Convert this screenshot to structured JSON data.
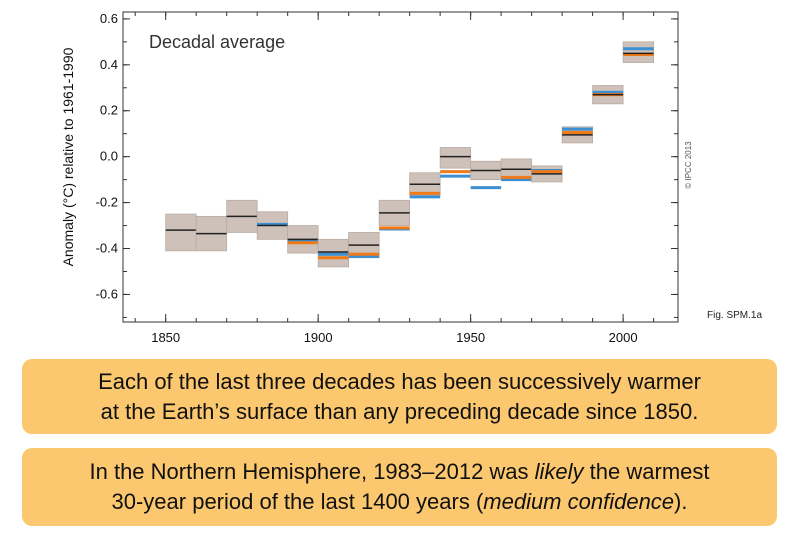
{
  "chart_data": {
    "type": "box",
    "title": "Decadal average",
    "ylabel": "Anomaly (°C) relative to 1961-1990",
    "xlabel": "",
    "xlim": [
      1836,
      2018
    ],
    "ylim": [
      -0.72,
      0.63
    ],
    "xticks": [
      1850,
      1900,
      1950,
      2000
    ],
    "xtick_labels": [
      "1850",
      "1900",
      "1950",
      "2000"
    ],
    "yticks": [
      0.6,
      0.4,
      0.2,
      0.0,
      -0.2,
      -0.4,
      -0.6
    ],
    "ytick_labels": [
      "0.6",
      "0.4",
      "0.2",
      "0.0",
      "-0.2",
      "-0.4",
      "-0.6"
    ],
    "grid": false,
    "legend": "none",
    "colors": {
      "uncertainty_box": "#cdc1b9",
      "box_edge": "#b8aba2",
      "central_estimate": "#222222",
      "orange_series": "#f07a18",
      "blue_series": "#3d8fd1",
      "axis": "#333333"
    },
    "decades": [
      {
        "start": 1850,
        "end": 1860,
        "low": -0.41,
        "high": -0.25,
        "black": -0.32,
        "orange": null,
        "blue": null
      },
      {
        "start": 1860,
        "end": 1870,
        "low": -0.41,
        "high": -0.26,
        "black": -0.335,
        "orange": null,
        "blue": null
      },
      {
        "start": 1870,
        "end": 1880,
        "low": -0.33,
        "high": -0.19,
        "black": -0.26,
        "orange": null,
        "blue": null
      },
      {
        "start": 1880,
        "end": 1890,
        "low": -0.36,
        "high": -0.24,
        "black": -0.3,
        "orange": null,
        "blue": -0.295
      },
      {
        "start": 1890,
        "end": 1900,
        "low": -0.42,
        "high": -0.3,
        "black": -0.36,
        "orange": -0.375,
        "blue": -0.365
      },
      {
        "start": 1900,
        "end": 1910,
        "low": -0.48,
        "high": -0.36,
        "black": -0.415,
        "orange": -0.44,
        "blue": -0.425
      },
      {
        "start": 1910,
        "end": 1920,
        "low": -0.44,
        "high": -0.33,
        "black": -0.385,
        "orange": -0.425,
        "blue": -0.435
      },
      {
        "start": 1920,
        "end": 1930,
        "low": -0.3,
        "high": -0.19,
        "black": -0.245,
        "orange": -0.31,
        "blue": -0.315
      },
      {
        "start": 1930,
        "end": 1940,
        "low": -0.17,
        "high": -0.07,
        "black": -0.12,
        "orange": -0.16,
        "blue": -0.175
      },
      {
        "start": 1940,
        "end": 1950,
        "low": -0.05,
        "high": 0.04,
        "black": 0.0,
        "orange": -0.065,
        "blue": -0.085
      },
      {
        "start": 1950,
        "end": 1960,
        "low": -0.1,
        "high": -0.02,
        "black": -0.06,
        "orange": null,
        "blue": -0.135
      },
      {
        "start": 1960,
        "end": 1970,
        "low": -0.09,
        "high": -0.01,
        "black": -0.055,
        "orange": -0.09,
        "blue": -0.1
      },
      {
        "start": 1970,
        "end": 1980,
        "low": -0.11,
        "high": -0.04,
        "black": -0.075,
        "orange": -0.065,
        "blue": -0.06
      },
      {
        "start": 1980,
        "end": 1990,
        "low": 0.06,
        "high": 0.13,
        "black": 0.095,
        "orange": 0.105,
        "blue": 0.12
      },
      {
        "start": 1990,
        "end": 2000,
        "low": 0.23,
        "high": 0.31,
        "black": 0.27,
        "orange": 0.27,
        "blue": 0.28
      },
      {
        "start": 2000,
        "end": 2010,
        "low": 0.41,
        "high": 0.5,
        "black": 0.45,
        "orange": 0.445,
        "blue": 0.47
      }
    ]
  },
  "credit": "© IPCC 2013",
  "figure_ref": "Fig. SPM.1a",
  "callouts": {
    "first": {
      "line1": "Each of the last three decades has been successively warmer",
      "line2": "at the Earth’s surface than any preceding decade since 1850."
    },
    "second": {
      "line1": "In the Northern Hemisphere, 1983–2012 was ",
      "line1_italic": "likely",
      "line1_end": " the warmest",
      "line2": "30-year period of the last 1400 years (",
      "line2_italic": "medium confidence",
      "line2_end": ")."
    }
  }
}
